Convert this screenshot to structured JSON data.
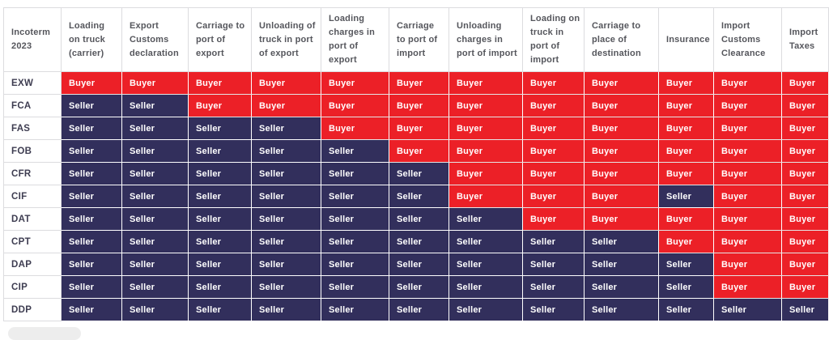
{
  "chart_data": {
    "type": "table",
    "corner_label": "Incoterm 2023",
    "columns": [
      "Loading on truck (carrier)",
      "Export Customs declaration",
      "Carriage to port of export",
      "Unloading of truck in port of export",
      "Loading charges in port of export",
      "Carriage to port of import",
      "Unloading charges in port of import",
      "Loading on truck in port of import",
      "Carriage to place of destination",
      "Insurance",
      "Import Customs Clearance",
      "Import Taxes"
    ],
    "rows": [
      "EXW",
      "FCA",
      "FAS",
      "FOB",
      "CFR",
      "CIF",
      "DAT",
      "CPT",
      "DAP",
      "CIP",
      "DDP"
    ],
    "values": [
      [
        "Buyer",
        "Buyer",
        "Buyer",
        "Buyer",
        "Buyer",
        "Buyer",
        "Buyer",
        "Buyer",
        "Buyer",
        "Buyer",
        "Buyer",
        "Buyer"
      ],
      [
        "Seller",
        "Seller",
        "Buyer",
        "Buyer",
        "Buyer",
        "Buyer",
        "Buyer",
        "Buyer",
        "Buyer",
        "Buyer",
        "Buyer",
        "Buyer"
      ],
      [
        "Seller",
        "Seller",
        "Seller",
        "Seller",
        "Buyer",
        "Buyer",
        "Buyer",
        "Buyer",
        "Buyer",
        "Buyer",
        "Buyer",
        "Buyer"
      ],
      [
        "Seller",
        "Seller",
        "Seller",
        "Seller",
        "Seller",
        "Buyer",
        "Buyer",
        "Buyer",
        "Buyer",
        "Buyer",
        "Buyer",
        "Buyer"
      ],
      [
        "Seller",
        "Seller",
        "Seller",
        "Seller",
        "Seller",
        "Seller",
        "Buyer",
        "Buyer",
        "Buyer",
        "Buyer",
        "Buyer",
        "Buyer"
      ],
      [
        "Seller",
        "Seller",
        "Seller",
        "Seller",
        "Seller",
        "Seller",
        "Buyer",
        "Buyer",
        "Buyer",
        "Seller",
        "Buyer",
        "Buyer"
      ],
      [
        "Seller",
        "Seller",
        "Seller",
        "Seller",
        "Seller",
        "Seller",
        "Seller",
        "Buyer",
        "Buyer",
        "Buyer",
        "Buyer",
        "Buyer"
      ],
      [
        "Seller",
        "Seller",
        "Seller",
        "Seller",
        "Seller",
        "Seller",
        "Seller",
        "Seller",
        "Seller",
        "Buyer",
        "Buyer",
        "Buyer"
      ],
      [
        "Seller",
        "Seller",
        "Seller",
        "Seller",
        "Seller",
        "Seller",
        "Seller",
        "Seller",
        "Seller",
        "Seller",
        "Buyer",
        "Buyer"
      ],
      [
        "Seller",
        "Seller",
        "Seller",
        "Seller",
        "Seller",
        "Seller",
        "Seller",
        "Seller",
        "Seller",
        "Seller",
        "Buyer",
        "Buyer"
      ],
      [
        "Seller",
        "Seller",
        "Seller",
        "Seller",
        "Seller",
        "Seller",
        "Seller",
        "Seller",
        "Seller",
        "Seller",
        "Seller",
        "Seller"
      ]
    ],
    "cell_colors": {
      "Buyer": "#EC2027",
      "Seller": "#322F5C"
    },
    "layout_hints": {
      "grid": true,
      "grid_line_color": "#DCDCDF",
      "header_text_color": "#55565C",
      "row_label_text_color": "#3E3D51",
      "cell_text_color": "#FFFFFF"
    }
  }
}
